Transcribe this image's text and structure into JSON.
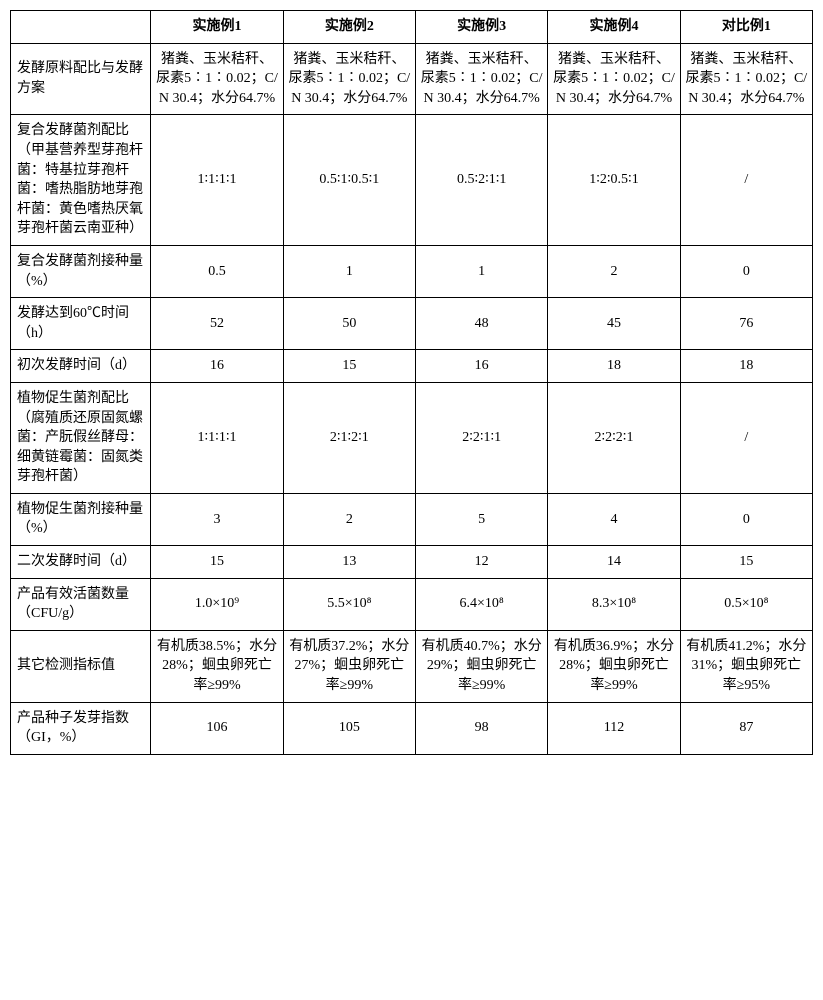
{
  "table": {
    "columns": [
      "",
      "实施例1",
      "实施例2",
      "实施例3",
      "实施例4",
      "对比例1"
    ],
    "row_labels": [
      "发酵原料配比与发酵方案",
      "复合发酵菌剂配比（甲基营养型芽孢杆菌：特基拉芽孢杆菌：嗜热脂肪地芽孢杆菌：黄色嗜热厌氧芽孢杆菌云南亚种）",
      "复合发酵菌剂接种量（%）",
      "发酵达到60℃时间（h）",
      "初次发酵时间（d）",
      "植物促生菌剂配比（腐殖质还原固氮螺菌：产朊假丝酵母：细黄链霉菌：固氮类芽孢杆菌）",
      "植物促生菌剂接种量（%）",
      "二次发酵时间（d）",
      "产品有效活菌数量（CFU/g）",
      "其它检测指标值",
      "产品种子发芽指数（GI，%）"
    ],
    "rows": [
      [
        "猪粪、玉米秸秆、尿素5∶1∶0.02；C/N 30.4；水分64.7%",
        "猪粪、玉米秸秆、尿素5∶1∶0.02；C/N 30.4；水分64.7%",
        "猪粪、玉米秸秆、尿素5∶1∶0.02；C/N 30.4；水分64.7%",
        "猪粪、玉米秸秆、尿素5∶1∶0.02；C/N 30.4；水分64.7%",
        "猪粪、玉米秸秆、尿素5∶1∶0.02；C/N 30.4；水分64.7%"
      ],
      [
        "1∶1∶1∶1",
        "0.5∶1∶0.5∶1",
        "0.5∶2∶1∶1",
        "1∶2∶0.5∶1",
        "/"
      ],
      [
        "0.5",
        "1",
        "1",
        "2",
        "0"
      ],
      [
        "52",
        "50",
        "48",
        "45",
        "76"
      ],
      [
        "16",
        "15",
        "16",
        "18",
        "18"
      ],
      [
        "1∶1∶1∶1",
        "2∶1∶2∶1",
        "2∶2∶1∶1",
        "2∶2∶2∶1",
        "/"
      ],
      [
        "3",
        "2",
        "5",
        "4",
        "0"
      ],
      [
        "15",
        "13",
        "12",
        "14",
        "15"
      ],
      [
        "1.0×10⁹",
        "5.5×10⁸",
        "6.4×10⁸",
        "8.3×10⁸",
        "0.5×10⁸"
      ],
      [
        "有机质38.5%；水分28%；蛔虫卵死亡率≥99%",
        "有机质37.2%；水分27%；蛔虫卵死亡率≥99%",
        "有机质40.7%；水分29%；蛔虫卵死亡率≥99%",
        "有机质36.9%；水分28%；蛔虫卵死亡率≥99%",
        "有机质41.2%；水分31%；蛔虫卵死亡率≥95%"
      ],
      [
        "106",
        "105",
        "98",
        "112",
        "87"
      ]
    ],
    "border_color": "#000000",
    "background_color": "#ffffff",
    "font_size": 14,
    "header_font_weight": "normal"
  }
}
